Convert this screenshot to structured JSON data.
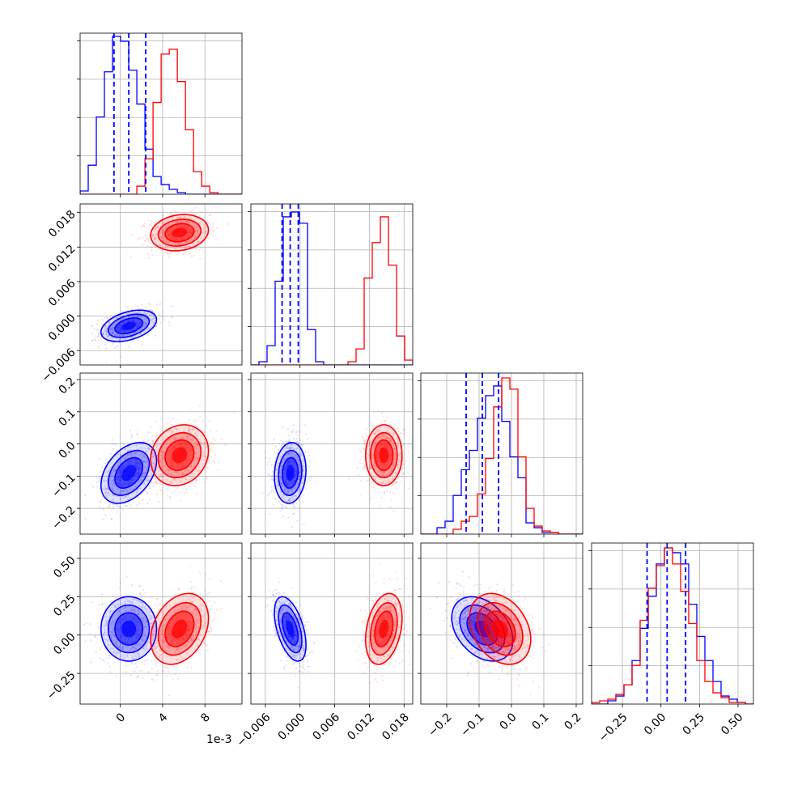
{
  "chart_data": {
    "type": "corner",
    "offset_label": "1e-3",
    "series": [
      {
        "color": "#0000ff"
      },
      {
        "color": "#ff0000"
      }
    ],
    "params": [
      {
        "xticks": [
          0,
          4,
          8
        ],
        "xtick_labels": [
          "0",
          "4",
          "8"
        ],
        "xlim": [
          -3.8,
          11.5
        ]
      },
      {
        "xticks": [
          -0.006,
          0.0,
          0.006,
          0.012,
          0.018
        ],
        "xtick_labels": [
          "−0.006",
          "0.000",
          "0.006",
          "0.012",
          "0.018"
        ],
        "xlim": [
          -0.0085,
          0.0195
        ]
      },
      {
        "xticks": [
          -0.2,
          -0.1,
          0.0,
          0.1,
          0.2
        ],
        "xtick_labels": [
          "−0.2",
          "−0.1",
          "0.0",
          "0.1",
          "0.2"
        ],
        "xlim": [
          -0.28,
          0.22
        ]
      },
      {
        "xticks": [
          -0.25,
          0.0,
          0.25,
          0.5
        ],
        "xtick_labels": [
          "−0.25",
          "0.00",
          "0.25",
          "0.50"
        ],
        "xlim": [
          -0.45,
          0.6
        ]
      }
    ],
    "row_yticks": [
      null,
      {
        "ticks": [
          -0.006,
          0.0,
          0.006,
          0.012,
          0.018
        ],
        "labels": [
          "−0.006",
          "0.000",
          "0.006",
          "0.012",
          "0.018"
        ],
        "lim": [
          -0.0085,
          0.0195
        ]
      },
      {
        "ticks": [
          -0.2,
          -0.1,
          0.0,
          0.1,
          0.2
        ],
        "labels": [
          "−0.2",
          "−0.1",
          "0.0",
          "0.1",
          "0.2"
        ],
        "lim": [
          -0.28,
          0.22
        ]
      },
      {
        "ticks": [
          -0.25,
          0.0,
          0.25,
          0.5
        ],
        "labels": [
          "−0.25",
          "0.00",
          "0.25",
          "0.50"
        ],
        "lim": [
          -0.45,
          0.6
        ]
      }
    ],
    "blue_quantiles": [
      [
        -0.6,
        0.8,
        2.4
      ],
      [
        -0.0031,
        -0.0017,
        -0.0003
      ],
      [
        -0.14,
        -0.09,
        -0.04
      ],
      [
        -0.09,
        0.04,
        0.16
      ]
    ],
    "histograms": {
      "blue": [
        {
          "start": -3.8,
          "width": 0.766,
          "counts": [
            0.02,
            0.18,
            0.48,
            0.76,
            0.98,
            0.95,
            0.77,
            0.56,
            0.28,
            0.11,
            0.06,
            0.03,
            0.01,
            0,
            0,
            0,
            0,
            0,
            0,
            0
          ]
        },
        {
          "start": -0.0085,
          "width": 0.0014,
          "counts": [
            0,
            0.02,
            0.12,
            0.52,
            0.92,
            0.95,
            0.88,
            0.22,
            0.02,
            0,
            0,
            0,
            0,
            0,
            0,
            0,
            0,
            0,
            0,
            0
          ]
        },
        {
          "start": -0.28,
          "width": 0.025,
          "counts": [
            0,
            0,
            0.04,
            0.08,
            0.24,
            0.4,
            0.52,
            0.72,
            0.86,
            0.92,
            0.7,
            0.48,
            0.35,
            0.07,
            0.04,
            0.01,
            0.01,
            0,
            0,
            0
          ]
        },
        {
          "start": -0.45,
          "width": 0.0525,
          "counts": [
            0,
            0,
            0.02,
            0.05,
            0.12,
            0.27,
            0.47,
            0.67,
            0.87,
            0.97,
            0.94,
            0.87,
            0.62,
            0.42,
            0.27,
            0.14,
            0.05,
            0.03,
            0.01,
            0
          ]
        }
      ],
      "red": [
        {
          "start": -3.8,
          "width": 0.766,
          "counts": [
            0,
            0,
            0,
            0,
            0,
            0,
            0,
            0.05,
            0.22,
            0.57,
            0.87,
            0.9,
            0.7,
            0.4,
            0.14,
            0.05,
            0.01,
            0,
            0,
            0
          ]
        },
        {
          "start": -0.0085,
          "width": 0.0014,
          "counts": [
            0,
            0,
            0,
            0,
            0,
            0,
            0,
            0,
            0,
            0,
            0,
            0,
            0.02,
            0.1,
            0.54,
            0.76,
            0.92,
            0.62,
            0.18,
            0.03
          ]
        },
        {
          "start": -0.28,
          "width": 0.025,
          "counts": [
            0,
            0,
            0,
            0,
            0.03,
            0.08,
            0.11,
            0.25,
            0.47,
            0.79,
            0.97,
            0.9,
            0.48,
            0.16,
            0.05,
            0.02,
            0.01,
            0,
            0,
            0
          ]
        },
        {
          "start": -0.45,
          "width": 0.0525,
          "counts": [
            0.01,
            0.02,
            0.03,
            0.06,
            0.12,
            0.24,
            0.52,
            0.72,
            0.86,
            0.97,
            0.87,
            0.7,
            0.5,
            0.27,
            0.14,
            0.07,
            0.04,
            0.01,
            0.01,
            0
          ]
        }
      ]
    },
    "clusters": {
      "blue": {
        "means": [
          0.8,
          -0.0017,
          -0.09,
          0.04
        ],
        "sds": [
          1.25,
          0.0013,
          0.045,
          0.1
        ],
        "corr": [
          [
            1,
            0.4,
            0.4,
            0
          ],
          [
            0.4,
            1,
            0.1,
            -0.5
          ],
          [
            0.4,
            0.1,
            1,
            -0.35
          ],
          [
            0,
            -0.5,
            -0.35,
            1
          ]
        ]
      },
      "red": {
        "means": [
          5.6,
          0.0145,
          -0.035,
          0.04
        ],
        "sds": [
          1.3,
          0.0015,
          0.045,
          0.11
        ],
        "corr": [
          [
            1,
            0.15,
            0.15,
            0.3
          ],
          [
            0.15,
            1,
            0,
            0.3
          ],
          [
            0.15,
            0,
            1,
            -0.3
          ],
          [
            0.3,
            0.3,
            -0.3,
            1
          ]
        ]
      }
    }
  }
}
